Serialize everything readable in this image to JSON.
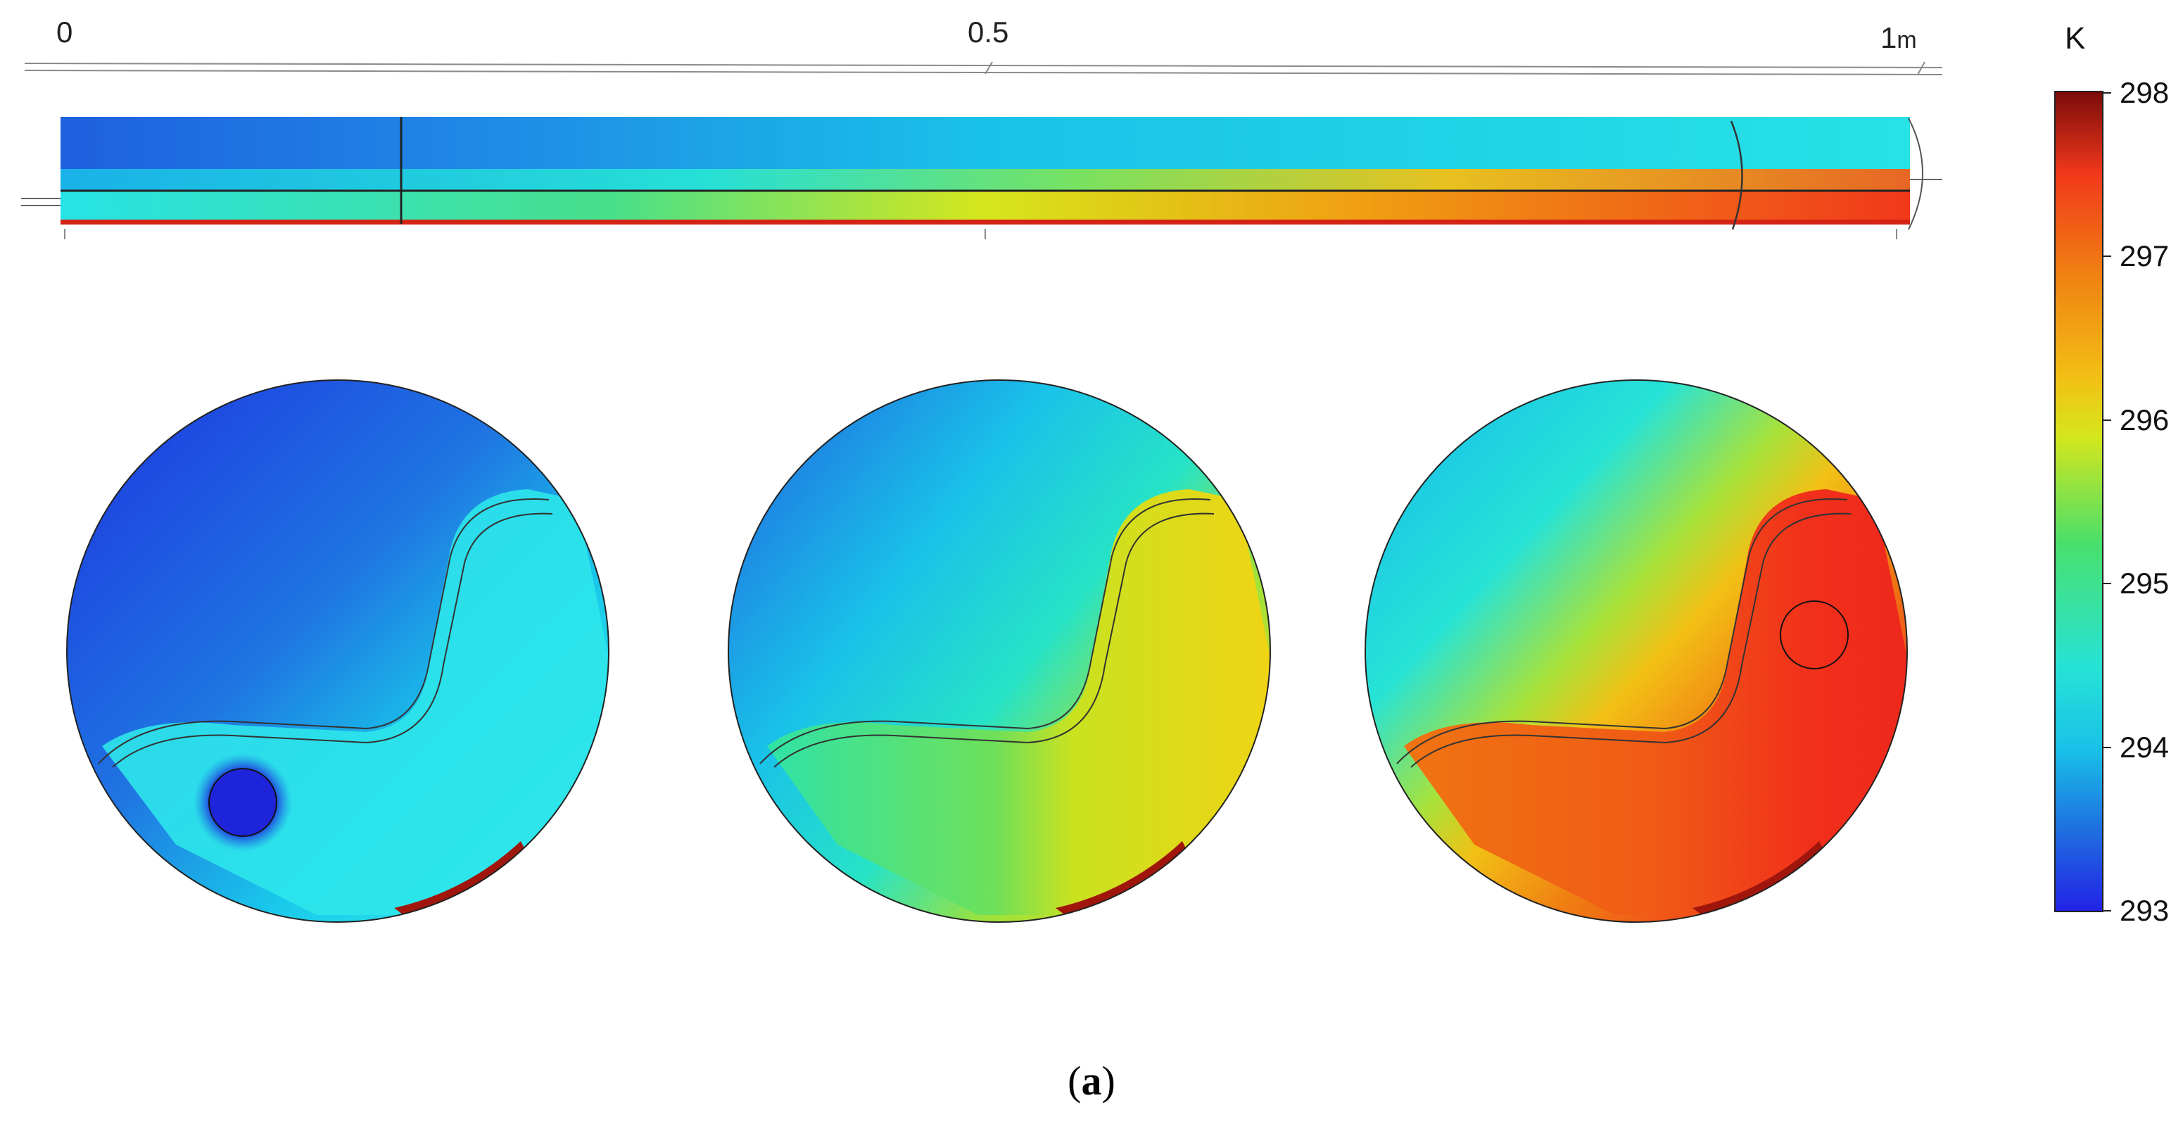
{
  "axis": {
    "ticks": [
      "0",
      "0.5",
      "1"
    ],
    "unit": "m"
  },
  "colorbar": {
    "unit": "K",
    "min": 293,
    "max": 298,
    "ticks": [
      "298",
      "297",
      "296",
      "295",
      "294",
      "293"
    ],
    "colormap": [
      "#2222e6",
      "#1f6fe0",
      "#19c2e8",
      "#27e3d6",
      "#49e06a",
      "#d6e61c",
      "#f2c015",
      "#f07f12",
      "#f1381b",
      "#b9170f",
      "#7a0c0a"
    ]
  },
  "caption": {
    "open": "(",
    "label": "a",
    "close": ")"
  }
}
